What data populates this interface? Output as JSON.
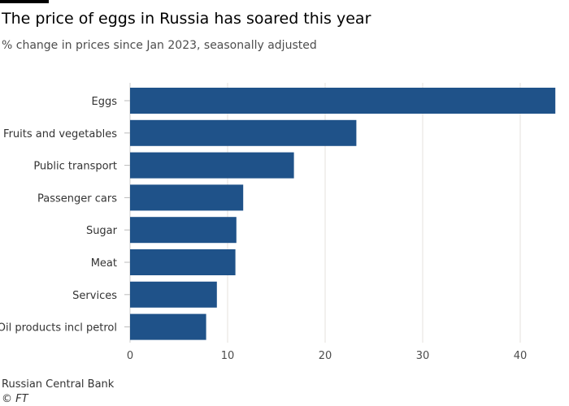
{
  "title": "The price of eggs in Russia has soared this year",
  "subtitle": "% change in prices since Jan 2023, seasonally adjusted",
  "source": "Russian Central Bank",
  "credit": "© FT",
  "chart_data": {
    "type": "bar",
    "orientation": "horizontal",
    "categories": [
      "Eggs",
      "Fruits and vegetables",
      "Public transport",
      "Passenger cars",
      "Sugar",
      "Meat",
      "Services",
      "Oil products incl petrol"
    ],
    "values": [
      43.6,
      23.2,
      16.8,
      11.6,
      10.9,
      10.8,
      8.9,
      7.8
    ],
    "xlim": [
      0,
      43.6
    ],
    "xticks": [
      0,
      10,
      20,
      30,
      40
    ],
    "grid": true,
    "bar_color": "#1f5289"
  }
}
